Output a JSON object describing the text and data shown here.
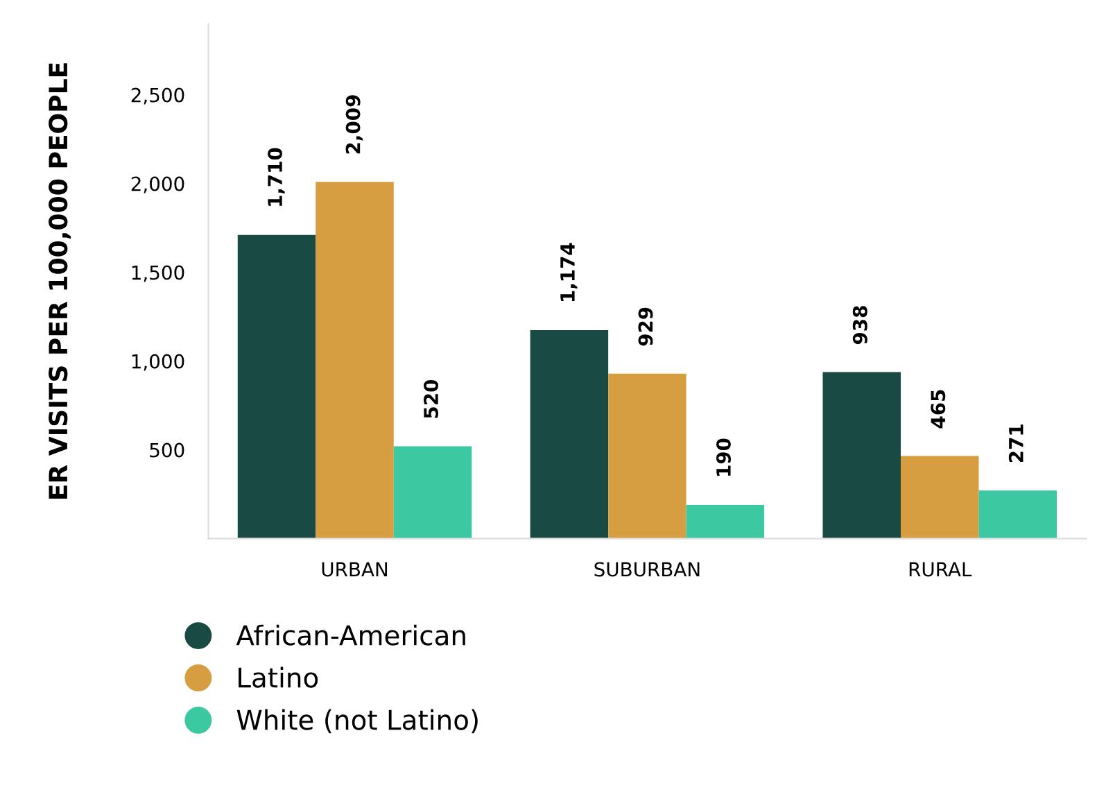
{
  "chart_data": {
    "type": "bar",
    "ylabel": "ER VISITS PER 100,000 PEOPLE",
    "categories": [
      "URBAN",
      "SUBURBAN",
      "RURAL"
    ],
    "series": [
      {
        "name": "African-American",
        "color": "#1a4a44",
        "values": [
          1710,
          1174,
          938
        ],
        "value_labels": [
          "1,710",
          "1,174",
          "938"
        ]
      },
      {
        "name": "Latino",
        "color": "#d69e40",
        "values": [
          2009,
          929,
          465
        ],
        "value_labels": [
          "2,009",
          "929",
          "465"
        ]
      },
      {
        "name": "White (not Latino)",
        "color": "#3cc8a0",
        "values": [
          520,
          190,
          271
        ],
        "value_labels": [
          "520",
          "190",
          "271"
        ]
      }
    ],
    "ylim": [
      0,
      2900
    ],
    "yticks": [
      {
        "value": 500,
        "label": "500"
      },
      {
        "value": 1000,
        "label": "1,000"
      },
      {
        "value": 1500,
        "label": "1,500"
      },
      {
        "value": 2000,
        "label": "2,000"
      },
      {
        "value": 2500,
        "label": "2,500"
      }
    ],
    "legend": "bottom",
    "grid": false,
    "marker": "circle"
  }
}
